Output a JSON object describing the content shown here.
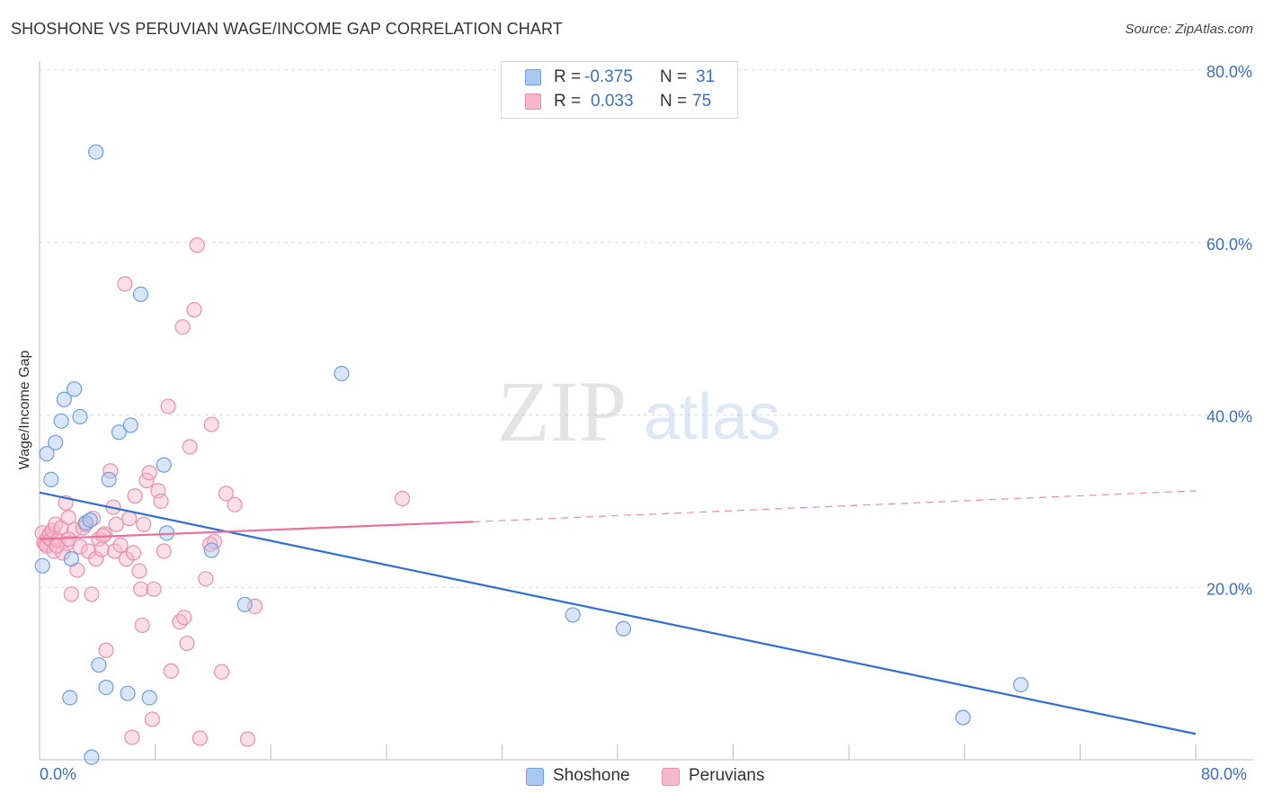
{
  "header": {
    "title": "SHOSHONE VS PERUVIAN WAGE/INCOME GAP CORRELATION CHART",
    "source": "Source: ZipAtlas.com"
  },
  "watermark": {
    "zip": "ZIP",
    "atlas": "atlas"
  },
  "legend_top": {
    "rows": [
      {
        "r_label": "R =",
        "r_value": "-0.375",
        "n_label": "N =",
        "n_value": "31"
      },
      {
        "r_label": "R =",
        "r_value": "0.033",
        "n_label": "N =",
        "n_value": "75"
      }
    ]
  },
  "legend_bottom": {
    "items": [
      "Shoshone",
      "Peruvians"
    ]
  },
  "colors": {
    "shoshone_fill": "#a9c8f0",
    "shoshone_stroke": "#6e9fe0",
    "shoshone_line": "#2f6fd1",
    "peruvian_fill": "#f6b8cc",
    "peruvian_stroke": "#ec8fac",
    "peruvian_line": "#e8709a",
    "axis_text": "#3b6fc9",
    "grid": "#dddddd"
  },
  "chart_data": {
    "type": "scatter",
    "title": "SHOSHONE VS PERUVIAN WAGE/INCOME GAP CORRELATION CHART",
    "xlabel": "",
    "ylabel": "Wage/Income Gap",
    "xlim": [
      0,
      80
    ],
    "ylim": [
      0,
      80
    ],
    "x_tick_labels": [
      "0.0%",
      "80.0%"
    ],
    "y_ticks": [
      20,
      40,
      60,
      80
    ],
    "y_tick_labels": [
      "20.0%",
      "40.0%",
      "60.0%",
      "80.0%"
    ],
    "grid": true,
    "series": [
      {
        "name": "Shoshone",
        "r": -0.375,
        "n": 31,
        "trend": {
          "x0": 0,
          "y0": 31.0,
          "x1": 80,
          "y1": 3.0
        },
        "points": [
          [
            0.2,
            22.5
          ],
          [
            0.5,
            35.5
          ],
          [
            0.8,
            32.5
          ],
          [
            1.1,
            36.8
          ],
          [
            1.5,
            39.3
          ],
          [
            1.7,
            41.8
          ],
          [
            2.4,
            43.0
          ],
          [
            2.8,
            39.8
          ],
          [
            2.2,
            23.3
          ],
          [
            3.2,
            27.5
          ],
          [
            3.5,
            27.8
          ],
          [
            3.9,
            70.5
          ],
          [
            4.1,
            11.0
          ],
          [
            4.8,
            32.5
          ],
          [
            5.5,
            38.0
          ],
          [
            6.3,
            38.8
          ],
          [
            7.0,
            54.0
          ],
          [
            8.6,
            34.2
          ],
          [
            8.8,
            26.3
          ],
          [
            11.9,
            24.3
          ],
          [
            14.2,
            18.0
          ],
          [
            20.9,
            44.8
          ],
          [
            2.1,
            7.2
          ],
          [
            3.6,
            0.3
          ],
          [
            4.6,
            8.4
          ],
          [
            6.1,
            7.7
          ],
          [
            7.6,
            7.2
          ],
          [
            36.9,
            16.8
          ],
          [
            40.4,
            15.2
          ],
          [
            63.9,
            4.9
          ],
          [
            67.9,
            8.7
          ]
        ]
      },
      {
        "name": "Peruvians",
        "r": 0.033,
        "n": 75,
        "trend": {
          "x0": 0,
          "y0": 25.6,
          "x1": 30,
          "y1": 27.6,
          "dash_x1": 80,
          "dash_y1": 31.2
        },
        "points": [
          [
            0.2,
            26.3
          ],
          [
            0.3,
            25.2
          ],
          [
            0.4,
            25.0
          ],
          [
            0.5,
            24.8
          ],
          [
            0.6,
            25.8
          ],
          [
            0.7,
            26.2
          ],
          [
            0.8,
            25.5
          ],
          [
            0.9,
            26.6
          ],
          [
            1.0,
            24.2
          ],
          [
            1.1,
            27.3
          ],
          [
            1.3,
            25.5
          ],
          [
            1.5,
            26.9
          ],
          [
            1.6,
            24.0
          ],
          [
            1.8,
            29.8
          ],
          [
            1.9,
            25.1
          ],
          [
            2.0,
            28.1
          ],
          [
            2.2,
            19.2
          ],
          [
            2.4,
            26.7
          ],
          [
            2.6,
            22.0
          ],
          [
            2.8,
            24.7
          ],
          [
            3.0,
            26.9
          ],
          [
            3.2,
            27.3
          ],
          [
            3.4,
            24.2
          ],
          [
            3.6,
            19.2
          ],
          [
            3.7,
            28.0
          ],
          [
            3.9,
            23.3
          ],
          [
            4.1,
            25.6
          ],
          [
            4.3,
            24.4
          ],
          [
            4.5,
            26.2
          ],
          [
            4.6,
            12.7
          ],
          [
            4.9,
            33.5
          ],
          [
            5.1,
            29.3
          ],
          [
            5.2,
            24.2
          ],
          [
            5.3,
            27.3
          ],
          [
            5.6,
            24.9
          ],
          [
            5.9,
            55.2
          ],
          [
            6.0,
            23.3
          ],
          [
            6.2,
            28.0
          ],
          [
            6.5,
            24.0
          ],
          [
            6.6,
            30.6
          ],
          [
            6.9,
            21.9
          ],
          [
            7.0,
            19.8
          ],
          [
            7.1,
            15.6
          ],
          [
            7.2,
            27.3
          ],
          [
            7.4,
            32.4
          ],
          [
            7.6,
            33.3
          ],
          [
            7.8,
            4.7
          ],
          [
            7.9,
            19.8
          ],
          [
            8.2,
            31.2
          ],
          [
            8.4,
            30.0
          ],
          [
            8.6,
            24.2
          ],
          [
            8.9,
            41.0
          ],
          [
            9.1,
            10.3
          ],
          [
            9.7,
            16.0
          ],
          [
            9.9,
            50.2
          ],
          [
            10.0,
            16.5
          ],
          [
            10.2,
            13.5
          ],
          [
            10.4,
            36.3
          ],
          [
            10.7,
            52.2
          ],
          [
            10.9,
            59.7
          ],
          [
            11.1,
            2.5
          ],
          [
            11.5,
            21.0
          ],
          [
            11.9,
            38.9
          ],
          [
            12.1,
            25.3
          ],
          [
            12.6,
            10.2
          ],
          [
            12.9,
            30.9
          ],
          [
            13.5,
            29.6
          ],
          [
            14.4,
            2.4
          ],
          [
            14.9,
            17.8
          ],
          [
            25.1,
            30.3
          ],
          [
            6.4,
            2.6
          ],
          [
            1.2,
            24.8
          ],
          [
            2.0,
            25.6
          ],
          [
            4.4,
            26.0
          ],
          [
            11.8,
            25.0
          ]
        ]
      }
    ]
  }
}
